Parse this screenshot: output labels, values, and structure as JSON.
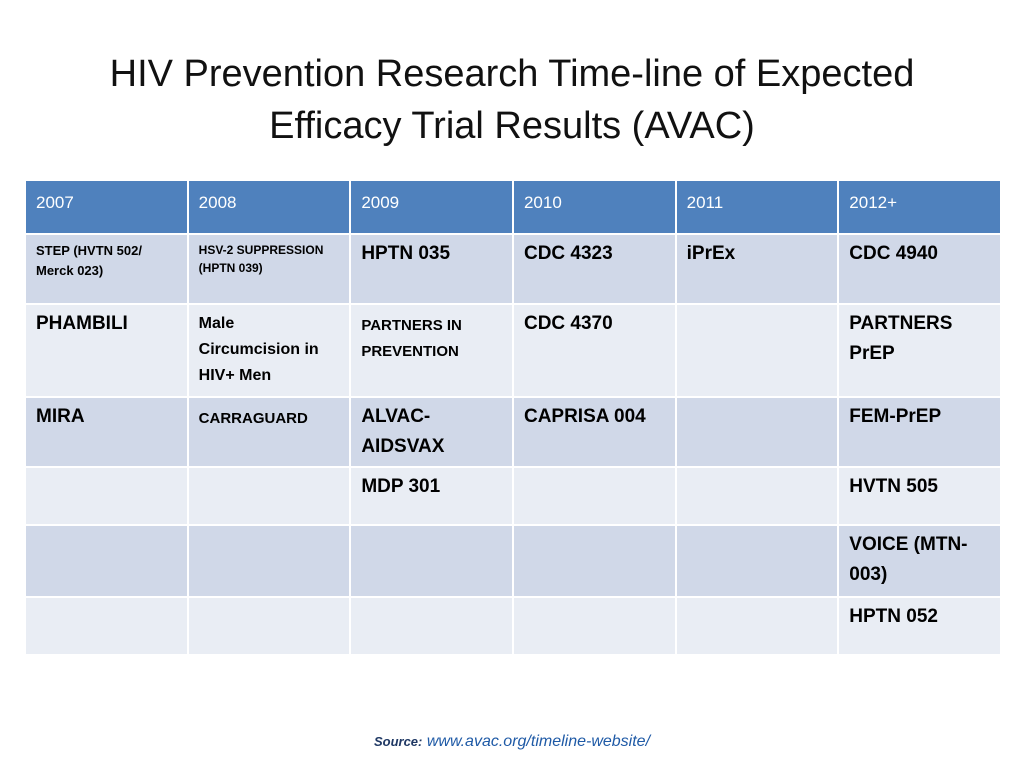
{
  "slide": {
    "title_line1": "HIV Prevention Research Time-line of Expected",
    "title_line2": "Efficacy Trial Results (AVAC)"
  },
  "table": {
    "headers": [
      "2007",
      "2008",
      "2009",
      "2010",
      "2011",
      "2012+"
    ],
    "rows": [
      [
        "STEP (HVTN 502/ Merck 023)",
        "HSV-2 SUPPRESSION (HPTN 039)",
        "HPTN 035",
        "CDC 4323",
        "iPrEx",
        "CDC 4940"
      ],
      [
        "PHAMBILI",
        "Male Circumcision in HIV+ Men",
        "PARTNERS IN PREVENTION",
        "CDC 4370",
        "",
        "PARTNERS PrEP"
      ],
      [
        "MIRA",
        "CARRAGUARD",
        "ALVAC-AIDSVAX",
        "CAPRISA 004",
        "",
        "FEM-PrEP"
      ],
      [
        "",
        "",
        "MDP 301",
        "",
        "",
        "HVTN 505"
      ],
      [
        "",
        "",
        "",
        "",
        "",
        "VOICE (MTN-003)"
      ],
      [
        "",
        "",
        "",
        "",
        "",
        "HPTN 052"
      ]
    ]
  },
  "source": {
    "label": "Source:",
    "link_text": "www.avac.org/timeline-website/"
  },
  "colors": {
    "header_fill": "#4f81bd",
    "row_band_dark": "#d0d8e8",
    "row_band_light": "#e9edf4"
  }
}
